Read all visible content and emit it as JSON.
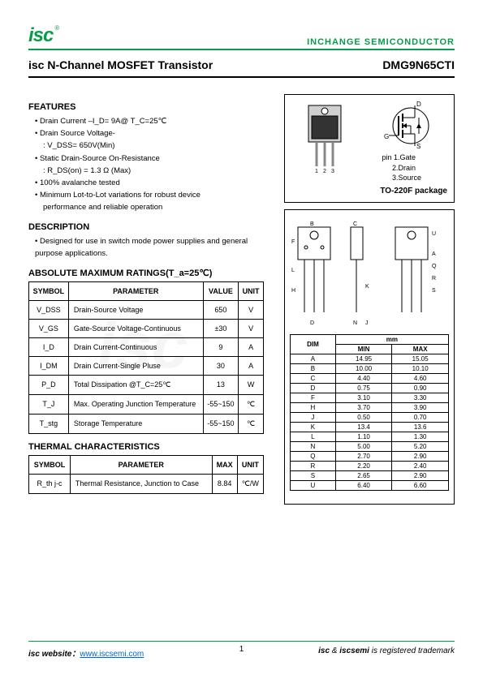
{
  "header": {
    "logo": "isc",
    "reg": "®",
    "company": "INCHANGE SEMICONDUCTOR"
  },
  "title": "isc N-Channel MOSFET Transistor",
  "part_number": "DMG9N65CTI",
  "sections": {
    "features_title": "FEATURES",
    "features": [
      "Drain Current –I_D= 9A@ T_C=25℃",
      "Drain Source Voltage-",
      "Static Drain-Source On-Resistance",
      "100% avalanche tested",
      "Minimum Lot-to-Lot variations for robust device"
    ],
    "feature_sub1": ": V_DSS= 650V(Min)",
    "feature_sub2": ": R_DS(on) = 1.3 Ω (Max)",
    "feature_sub3": "performance and reliable operation",
    "description_title": "DESCRIPTION",
    "description": "Designed for use in switch mode power supplies and general purpose applications.",
    "ratings_title": "ABSOLUTE MAXIMUM RATINGS(T_a=25℃)",
    "thermal_title": "THERMAL CHARACTERISTICS"
  },
  "ratings_table": {
    "headers": [
      "SYMBOL",
      "PARAMETER",
      "VALUE",
      "UNIT"
    ],
    "rows": [
      [
        "V_DSS",
        "Drain-Source Voltage",
        "650",
        "V"
      ],
      [
        "V_GS",
        "Gate-Source Voltage-Continuous",
        "±30",
        "V"
      ],
      [
        "I_D",
        "Drain Current-Continuous",
        "9",
        "A"
      ],
      [
        "I_DM",
        "Drain Current-Single Pluse",
        "30",
        "A"
      ],
      [
        "P_D",
        "Total Dissipation @T_C=25℃",
        "13",
        "W"
      ],
      [
        "T_J",
        "Max. Operating Junction Temperature",
        "-55~150",
        "℃"
      ],
      [
        "T_stg",
        "Storage Temperature",
        "-55~150",
        "℃"
      ]
    ]
  },
  "thermal_table": {
    "headers": [
      "SYMBOL",
      "PARAMETER",
      "MAX",
      "UNIT"
    ],
    "rows": [
      [
        "R_th j-c",
        "Thermal Resistance, Junction to Case",
        "8.84",
        "℃/W"
      ]
    ]
  },
  "package": {
    "pins_label": "pin",
    "pin1": "1.Gate",
    "pin2": "2.Drain",
    "pin3": "3.Source",
    "name": "TO-220F package",
    "pin_labels_bottom": "1  2  3",
    "terminals": {
      "d": "D",
      "g": "G",
      "s": "S"
    }
  },
  "dimensions": {
    "unit_header": "mm",
    "headers": [
      "DIM",
      "MIN",
      "MAX"
    ],
    "rows": [
      [
        "A",
        "14.95",
        "15.05"
      ],
      [
        "B",
        "10.00",
        "10.10"
      ],
      [
        "C",
        "4.40",
        "4.60"
      ],
      [
        "D",
        "0.75",
        "0.90"
      ],
      [
        "F",
        "3.10",
        "3.30"
      ],
      [
        "H",
        "3.70",
        "3.90"
      ],
      [
        "J",
        "0.50",
        "0.70"
      ],
      [
        "K",
        "13.4",
        "13.6"
      ],
      [
        "L",
        "1.10",
        "1.30"
      ],
      [
        "N",
        "5.00",
        "5.20"
      ],
      [
        "Q",
        "2.70",
        "2.90"
      ],
      [
        "R",
        "2.20",
        "2.40"
      ],
      [
        "S",
        "2.65",
        "2.90"
      ],
      [
        "U",
        "6.40",
        "6.60"
      ]
    ],
    "drawing_labels": [
      "B",
      "C",
      "F",
      "L",
      "H",
      "K",
      "D",
      "N",
      "J",
      "U",
      "A",
      "Q",
      "R",
      "S"
    ]
  },
  "footer": {
    "left_label": "isc website：",
    "link": "www.iscsemi.com",
    "page": "1",
    "right": "isc & iscsemi is registered trademark"
  },
  "colors": {
    "green": "#0a9b4a",
    "link": "#0066cc"
  }
}
